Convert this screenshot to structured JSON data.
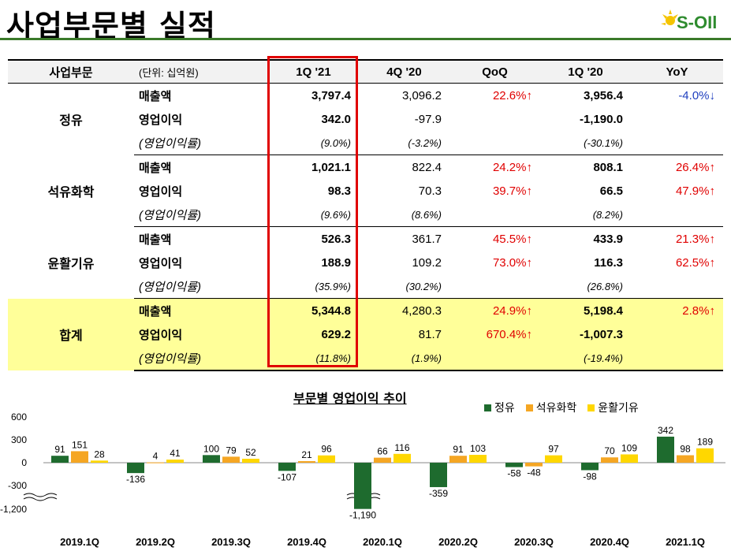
{
  "header": {
    "title": "사업부문별 실적",
    "logo_text": "S-OIl"
  },
  "table": {
    "columns": [
      "사업부문",
      "(단위: 십억원)",
      "1Q '21",
      "4Q '20",
      "QoQ",
      "1Q '20",
      "YoY"
    ],
    "segments": [
      {
        "name": "정유",
        "rows": [
          {
            "metric": "매출액",
            "q1_21": "3,797.4",
            "q4_20": "3,096.2",
            "qoq": "22.6%↑",
            "q1_20": "3,956.4",
            "yoy": "-4.0%↓"
          },
          {
            "metric": "영업이익",
            "q1_21": "342.0",
            "q4_20": "-97.9",
            "qoq": "",
            "q1_20": "-1,190.0",
            "yoy": ""
          },
          {
            "metric": "(영업이익률)",
            "q1_21": "(9.0%)",
            "q4_20": "(-3.2%)",
            "qoq": "",
            "q1_20": "(-30.1%)",
            "yoy": ""
          }
        ]
      },
      {
        "name": "석유화학",
        "rows": [
          {
            "metric": "매출액",
            "q1_21": "1,021.1",
            "q4_20": "822.4",
            "qoq": "24.2%↑",
            "q1_20": "808.1",
            "yoy": "26.4%↑"
          },
          {
            "metric": "영업이익",
            "q1_21": "98.3",
            "q4_20": "70.3",
            "qoq": "39.7%↑",
            "q1_20": "66.5",
            "yoy": "47.9%↑"
          },
          {
            "metric": "(영업이익률)",
            "q1_21": "(9.6%)",
            "q4_20": "(8.6%)",
            "qoq": "",
            "q1_20": "(8.2%)",
            "yoy": ""
          }
        ]
      },
      {
        "name": "윤활기유",
        "rows": [
          {
            "metric": "매출액",
            "q1_21": "526.3",
            "q4_20": "361.7",
            "qoq": "45.5%↑",
            "q1_20": "433.9",
            "yoy": "21.3%↑"
          },
          {
            "metric": "영업이익",
            "q1_21": "188.9",
            "q4_20": "109.2",
            "qoq": "73.0%↑",
            "q1_20": "116.3",
            "yoy": "62.5%↑"
          },
          {
            "metric": "(영업이익률)",
            "q1_21": "(35.9%)",
            "q4_20": "(30.2%)",
            "qoq": "",
            "q1_20": "(26.8%)",
            "yoy": ""
          }
        ]
      },
      {
        "name": "합계",
        "rows": [
          {
            "metric": "매출액",
            "q1_21": "5,344.8",
            "q4_20": "4,280.3",
            "qoq": "24.9%↑",
            "q1_20": "5,198.4",
            "yoy": "2.8%↑"
          },
          {
            "metric": "영업이익",
            "q1_21": "629.2",
            "q4_20": "81.7",
            "qoq": "670.4%↑",
            "q1_20": "-1,007.3",
            "yoy": ""
          },
          {
            "metric": "(영업이익률)",
            "q1_21": "(11.8%)",
            "q4_20": "(1.9%)",
            "qoq": "",
            "q1_20": "(-19.4%)",
            "yoy": ""
          }
        ]
      }
    ]
  },
  "chart_data": {
    "type": "bar",
    "title": "부문별 영업이익 추이",
    "categories": [
      "2019.1Q",
      "2019.2Q",
      "2019.3Q",
      "2019.4Q",
      "2020.1Q",
      "2020.2Q",
      "2020.3Q",
      "2020.4Q",
      "2021.1Q"
    ],
    "series": [
      {
        "name": "정유",
        "color": "#1e6b2e",
        "values": [
          91,
          -136,
          100,
          -107,
          -1190,
          -359,
          -58,
          -98,
          342
        ]
      },
      {
        "name": "석유화학",
        "color": "#f5a623",
        "values": [
          151,
          4,
          79,
          21,
          66,
          91,
          -48,
          70,
          98
        ]
      },
      {
        "name": "윤활기유",
        "color": "#ffd700",
        "values": [
          28,
          41,
          52,
          96,
          116,
          103,
          97,
          109,
          189
        ]
      }
    ],
    "yticks": [
      "600",
      "300",
      "0",
      "-300",
      "-1,200"
    ],
    "ylim": [
      -1200,
      600
    ],
    "axis_break": true
  }
}
